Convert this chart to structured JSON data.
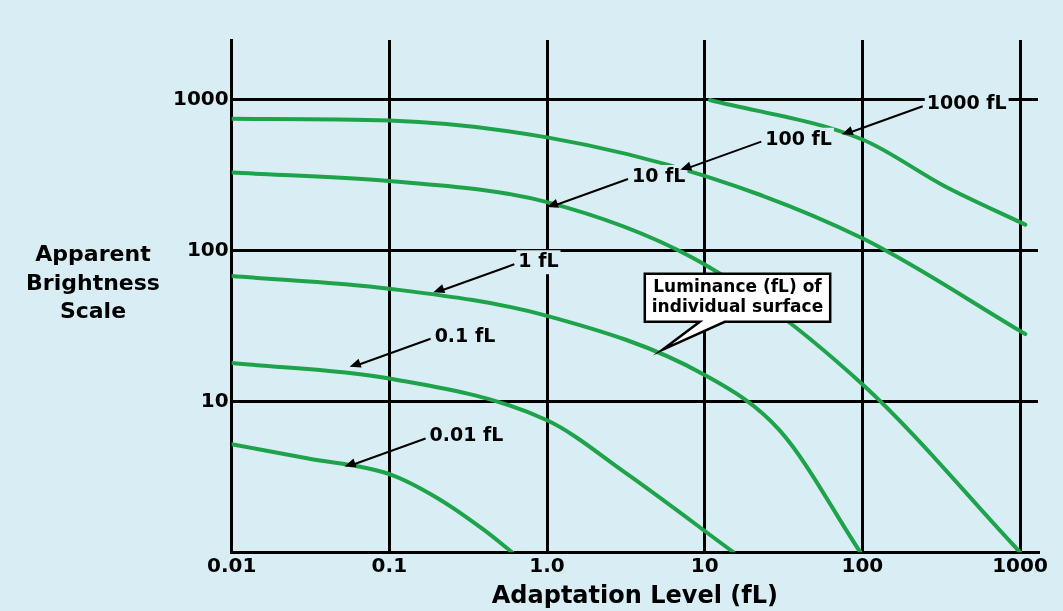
{
  "chart_data": {
    "type": "line",
    "xlabel": "Adaptation Level (fL)",
    "ylabel": "Apparent Brightness Scale",
    "log": "xy",
    "grid": true,
    "marker": "none",
    "line_style": "solid",
    "legend": false,
    "xlim": [
      0.01,
      1300
    ],
    "ylim": [
      1,
      2500
    ],
    "xticks": [
      0.01,
      0.1,
      {
        "value": 1,
        "label": "1.0"
      },
      10,
      100,
      1000
    ],
    "yticks": [
      {
        "value": 1,
        "label": null
      },
      10,
      100,
      1000
    ],
    "series": [
      {
        "color": "#1ea34a",
        "x": [
          0.01,
          0.03,
          0.1,
          0.2,
          0.4,
          0.6
        ],
        "values": [
          5.2,
          4.2,
          3.3,
          2.3,
          1.4,
          1
        ]
      },
      {
        "color": "#1ea34a",
        "x": [
          0.01,
          0.1,
          1,
          3.1,
          15.2
        ],
        "values": [
          18,
          14.2,
          7.5,
          3.4,
          1
        ]
      },
      {
        "color": "#1ea34a",
        "x": [
          0.01,
          0.1,
          1,
          10,
          30,
          97
        ],
        "values": [
          68,
          56,
          37,
          15,
          6.4,
          1
        ]
      },
      {
        "color": "#1ea34a",
        "x": [
          0.01,
          0.1,
          1,
          10,
          100,
          1000
        ],
        "values": [
          330,
          290,
          210,
          81,
          13,
          1
        ]
      },
      {
        "color": "#1ea34a",
        "x": [
          0.01,
          0.1,
          1,
          10,
          100,
          1080
        ],
        "values": [
          750,
          730,
          565,
          314,
          121,
          28
        ]
      },
      {
        "color": "#1ea34a",
        "x": [
          10.8,
          100,
          333,
          1080
        ],
        "values": [
          1000,
          547,
          268,
          149
        ]
      }
    ],
    "annotations": [
      {
        "text": "0.01 fL",
        "x": 0.052,
        "y": 3.7
      },
      {
        "text": "0.1 fL",
        "x": 0.056,
        "y": 17
      },
      {
        "text": "1 fL",
        "x": 0.19,
        "y": 53
      },
      {
        "text": "10 fL",
        "x": 1.0,
        "y": 195
      },
      {
        "text": "100 fL",
        "x": 7,
        "y": 345
      },
      {
        "text": "1000 fL",
        "x": 74,
        "y": 592
      },
      {
        "text": "Luminance (fL) of\nindividual surface",
        "x": 5.4,
        "y": 22
      }
    ]
  }
}
